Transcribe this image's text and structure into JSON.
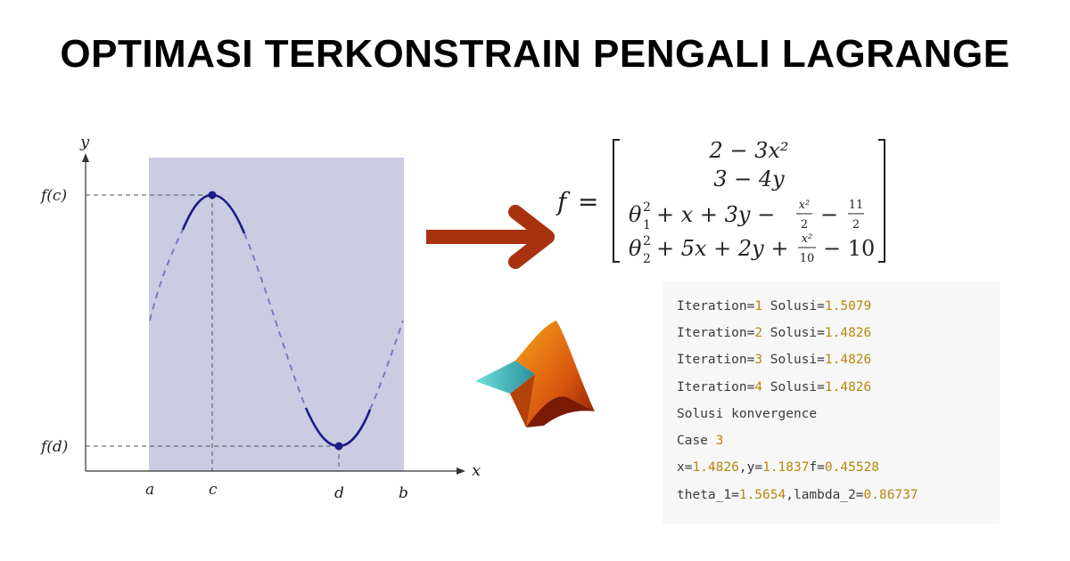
{
  "title": "OPTIMASI TERKONSTRAIN PENGALI LAGRANGE",
  "graph": {
    "axis_x": "x",
    "axis_y": "y",
    "y_labels": {
      "fc": "f(c)",
      "fd": "f(d)"
    },
    "x_labels": {
      "a": "a",
      "c": "c",
      "d": "d",
      "b": "b"
    }
  },
  "formula": {
    "lhs": "f",
    "equals": "=",
    "row1": "2 − 3x²",
    "row2": "3 − 4y",
    "row3": {
      "lead": "θ",
      "sup": "2",
      "sub": "1",
      "mid": "+ x + 3y −",
      "frac1_num": "x²",
      "frac1_den": "2",
      "minus": "−",
      "frac2_num": "11",
      "frac2_den": "2"
    },
    "row4": {
      "lead": "θ",
      "sup": "2",
      "sub": "2",
      "mid": "+ 5x + 2y +",
      "frac1_num": "x²",
      "frac1_den": "10",
      "tail": "− 10"
    }
  },
  "output_lines": [
    {
      "prefix": "Iteration=",
      "n": "1",
      "mid": " Solusi=",
      "val": "1.5079"
    },
    {
      "prefix": "Iteration=",
      "n": "2",
      "mid": " Solusi=",
      "val": "1.4826"
    },
    {
      "prefix": "Iteration=",
      "n": "3",
      "mid": " Solusi=",
      "val": "1.4826"
    },
    {
      "prefix": "Iteration=",
      "n": "4",
      "mid": " Solusi=",
      "val": "1.4826"
    }
  ],
  "output_text": {
    "konv": "Solusi konvergence",
    "case_label": "Case ",
    "case_num": "3",
    "xy_a": "x=",
    "xy_b": "1.4826",
    "xy_c": ",y=",
    "xy_d": "1.1837",
    "xy_e": "f=",
    "xy_f": "0.45528",
    "th_a": "theta_1=",
    "th_b": "1.5654",
    "th_c": ",lambda_2=",
    "th_d": "0.86737"
  },
  "colors": {
    "shade": "#cbcbe2",
    "curve": "#1c1c8a",
    "dashed_curve": "#7a7ac0",
    "arrow": "#a8320f",
    "number": "#b8860b"
  },
  "icons": [
    "matlab-logo",
    "right-arrow-icon"
  ]
}
